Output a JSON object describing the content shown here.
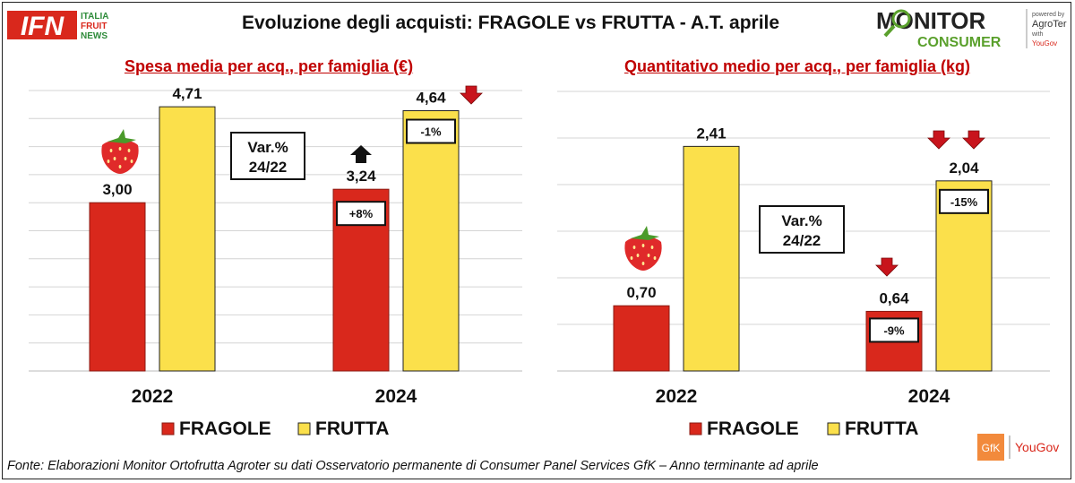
{
  "title": "Evoluzione degli acquisti: FRAGOLE vs FRUTTA  - A.T. aprile",
  "logos": {
    "ifn_mark": "IFN",
    "ifn_line1": "ITALIA",
    "ifn_line2": "FRUIT",
    "ifn_line3": "NEWS",
    "monitor": "MONITOR",
    "consumer": "CONSUMER",
    "powered_by": "powered by",
    "agroter": "AgroTer",
    "with": "with",
    "yougov_small": "YouGov",
    "gfk": "GfK",
    "yougov": "YouGov"
  },
  "footer": {
    "source": "Fonte: Elaborazioni Monitor Ortofrutta Agroter su dati Osservatorio permanente di Consumer Panel Services GfK  – Anno terminante ad aprile"
  },
  "colors": {
    "fragole": "#d9281c",
    "frutta": "#fbe04b",
    "title_red": "#c00000",
    "arrow_red": "#c8141c"
  },
  "chart_data": [
    {
      "type": "bar",
      "title": "Spesa media per acq., per famiglia (€)",
      "categories": [
        "2022",
        "2024"
      ],
      "series": [
        {
          "name": "FRAGOLE",
          "values": [
            3.0,
            3.24
          ],
          "labels": [
            "3,00",
            "3,24"
          ]
        },
        {
          "name": "FRUTTA",
          "values": [
            4.71,
            4.64
          ],
          "labels": [
            "4,71",
            "4,64"
          ]
        }
      ],
      "ylim": [
        0,
        5.0
      ],
      "grid": true,
      "legend_position": "bottom",
      "var_box": {
        "line1": "Var.%",
        "line2": "24/22"
      },
      "changes": {
        "FRAGOLE": "+8%",
        "FRUTTA": "-1%"
      },
      "arrows": {
        "FRAGOLE": [
          "up"
        ],
        "FRUTTA": [
          "down"
        ]
      },
      "strawberry_icon": "strawberry-icon"
    },
    {
      "type": "bar",
      "title": "Quantitativo medio per acq., per famiglia (kg)",
      "categories": [
        "2022",
        "2024"
      ],
      "series": [
        {
          "name": "FRAGOLE",
          "values": [
            0.7,
            0.64
          ],
          "labels": [
            "0,70",
            "0,64"
          ]
        },
        {
          "name": "FRUTTA",
          "values": [
            2.41,
            2.04
          ],
          "labels": [
            "2,41",
            "2,04"
          ]
        }
      ],
      "ylim": [
        0,
        3.0
      ],
      "grid": true,
      "legend_position": "bottom",
      "var_box": {
        "line1": "Var.%",
        "line2": "24/22"
      },
      "changes": {
        "FRAGOLE": "-9%",
        "FRUTTA": "-15%"
      },
      "arrows": {
        "FRAGOLE": [
          "down"
        ],
        "FRUTTA": [
          "down",
          "down"
        ]
      },
      "strawberry_icon": "strawberry-icon"
    }
  ]
}
